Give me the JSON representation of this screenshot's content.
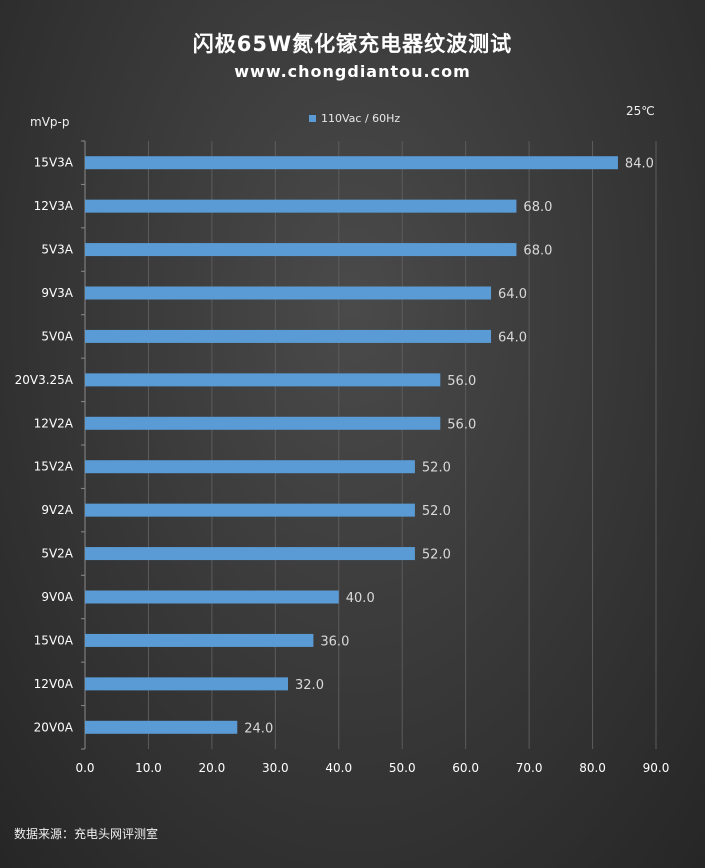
{
  "title": "闪极65W氮化镓充电器纹波测试",
  "subtitle": "www.chongdiantou.com",
  "temperature": "25℃",
  "source": "数据来源：充电头网评测室",
  "colors": {
    "bar": "#5b9bd5",
    "text": "#ffffff",
    "value_label": "#d9d9d9",
    "axis_label": "#ffffff",
    "grid": "#5c5c5c"
  },
  "chart_data": {
    "type": "bar",
    "orientation": "horizontal",
    "unit_label": "mVp-p",
    "legend": [
      "110Vac / 60Hz"
    ],
    "categories": [
      "15V3A",
      "12V3A",
      "5V3A",
      "9V3A",
      "5V0A",
      "20V3.25A",
      "12V2A",
      "15V2A",
      "9V2A",
      "5V2A",
      "9V0A",
      "15V0A",
      "12V0A",
      "20V0A"
    ],
    "series": [
      {
        "name": "110Vac / 60Hz",
        "values": [
          84.0,
          68.0,
          68.0,
          64.0,
          64.0,
          56.0,
          56.0,
          52.0,
          52.0,
          52.0,
          40.0,
          36.0,
          32.0,
          24.0
        ]
      }
    ],
    "xlim": [
      0,
      90
    ],
    "ticks": [
      "0.0",
      "10.0",
      "20.0",
      "30.0",
      "40.0",
      "50.0",
      "60.0",
      "70.0",
      "80.0",
      "90.0"
    ],
    "grid": true
  }
}
